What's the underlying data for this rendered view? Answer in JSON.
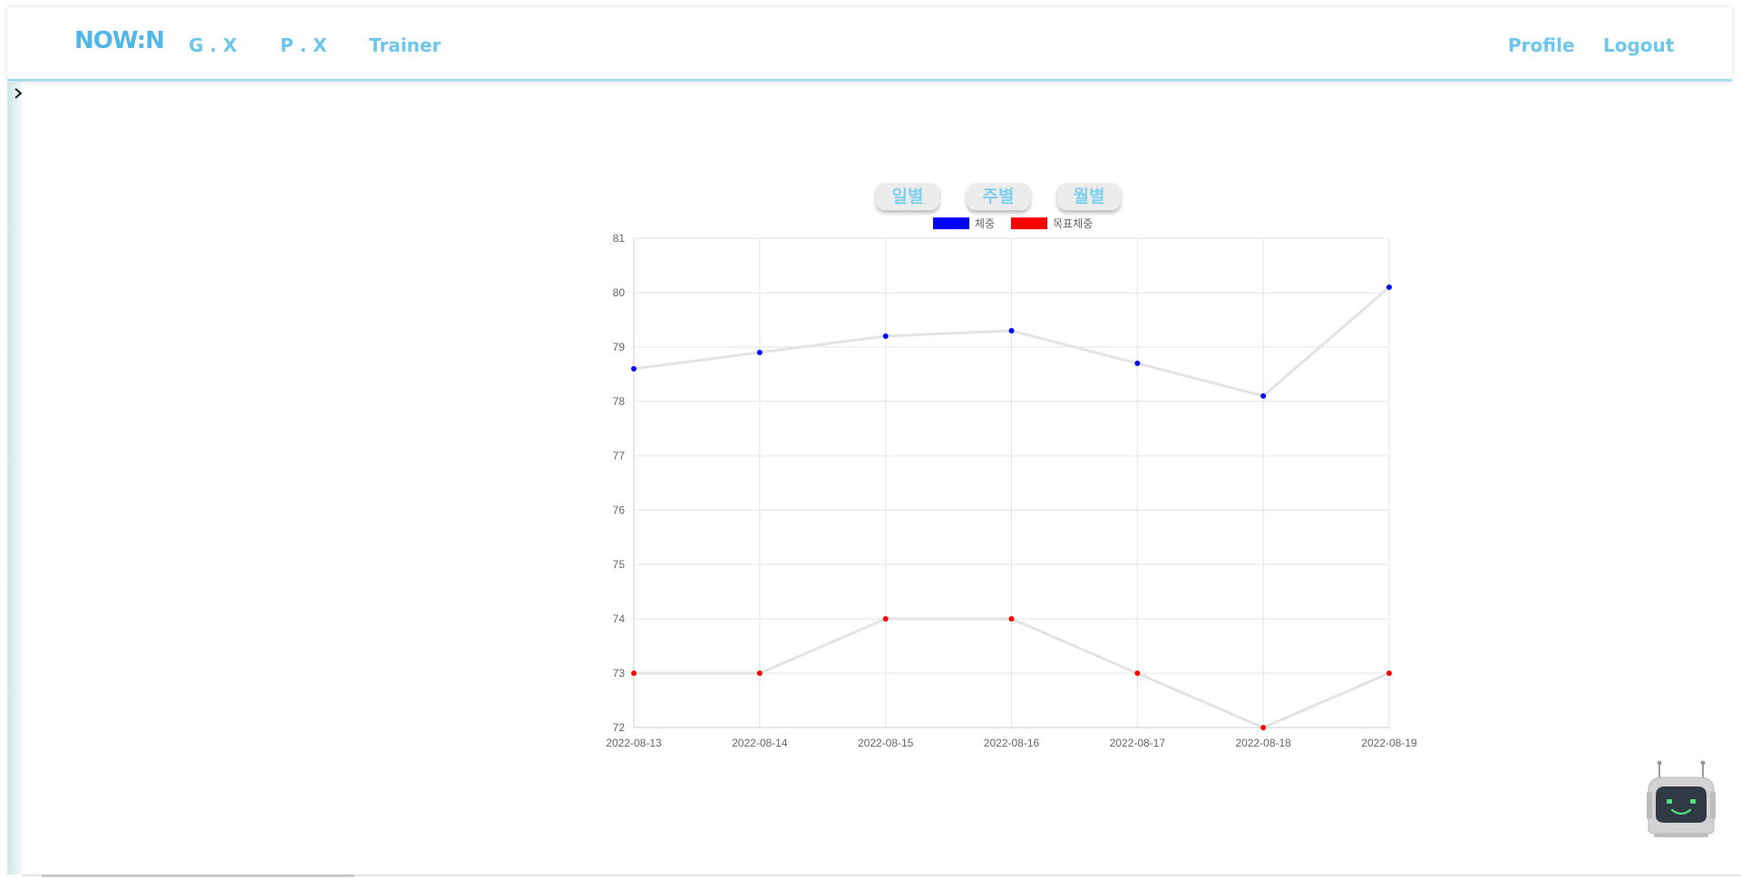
{
  "navbar": {
    "brand": "NOW:N",
    "links": {
      "gx": "G . X",
      "px": "P . X",
      "trainer": "Trainer",
      "profile": "Profile",
      "logout": "Logout"
    },
    "accent_color": "#6cc7ee"
  },
  "sidebar": {
    "toggle_icon": "chevron-right-icon"
  },
  "period_buttons": {
    "daily": "일별",
    "weekly": "주별",
    "monthly": "월별"
  },
  "chatbot": {
    "icon": "robot-icon"
  },
  "chart_data": {
    "type": "line",
    "x": [
      "2022-08-13",
      "2022-08-14",
      "2022-08-15",
      "2022-08-16",
      "2022-08-17",
      "2022-08-18",
      "2022-08-19"
    ],
    "series": [
      {
        "name": "체중",
        "color": "#0000ff",
        "values": [
          78.6,
          78.9,
          79.2,
          79.3,
          78.7,
          78.1,
          80.1
        ]
      },
      {
        "name": "목표체중",
        "color": "#ff0000",
        "values": [
          73,
          73,
          74,
          74,
          73,
          72,
          73
        ]
      }
    ],
    "ylim": [
      72,
      81
    ],
    "yticks": [
      72,
      73,
      74,
      75,
      76,
      77,
      78,
      79,
      80,
      81
    ],
    "line_color": "#e3e3e3",
    "grid": true,
    "legend": "top-center"
  }
}
